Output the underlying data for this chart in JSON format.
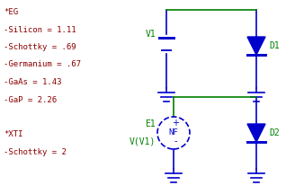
{
  "bg_color": "#ffffff",
  "text_color_red": "#8b0000",
  "wire_color": "#008000",
  "component_color": "#0000cd",
  "text_left": [
    "*EG",
    "-Silicon = 1.11",
    "-Schottky = .69",
    "-Germanium = .67",
    "-GaAs = 1.43",
    "-GaP = 2.26",
    "",
    "*XTI",
    "-Schottky = 2"
  ],
  "label_v1": "V1",
  "label_d1": "D1",
  "label_e1": "E1",
  "label_vv1": "V(V1)",
  "label_nf": "NF",
  "label_d2": "D2",
  "figsize": [
    3.18,
    2.16
  ],
  "dpi": 100
}
